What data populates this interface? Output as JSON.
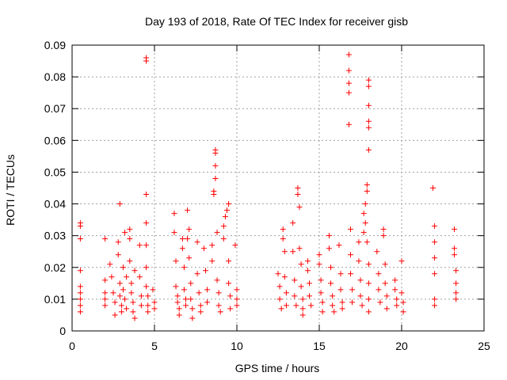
{
  "chart_data": {
    "type": "scatter",
    "title": "Day 193 of 2018, Rate Of TEC Index for receiver gisb",
    "xlabel": "GPS time / hours",
    "ylabel": "ROTI / TECUs",
    "xlim": [
      0,
      25
    ],
    "ylim": [
      0,
      0.09
    ],
    "xticks": [
      "0",
      "5",
      "10",
      "15",
      "20",
      "25"
    ],
    "yticks": [
      "0",
      "0.01",
      "0.02",
      "0.03",
      "0.04",
      "0.05",
      "0.06",
      "0.07",
      "0.08",
      "0.09"
    ],
    "grid": true,
    "marker": "plus",
    "color": "#ff0000",
    "series": [
      {
        "points": [
          [
            0.5,
            0.034
          ],
          [
            0.5,
            0.033
          ],
          [
            0.5,
            0.029
          ],
          [
            0.5,
            0.019
          ],
          [
            0.5,
            0.014
          ],
          [
            0.5,
            0.012
          ],
          [
            0.5,
            0.01
          ],
          [
            0.5,
            0.008
          ],
          [
            0.5,
            0.006
          ],
          [
            2.0,
            0.029
          ],
          [
            2.0,
            0.016
          ],
          [
            2.0,
            0.012
          ],
          [
            2.0,
            0.01
          ],
          [
            2.0,
            0.008
          ],
          [
            2.3,
            0.021
          ],
          [
            2.4,
            0.017
          ],
          [
            2.5,
            0.012
          ],
          [
            2.6,
            0.009
          ],
          [
            2.6,
            0.005
          ],
          [
            2.8,
            0.028
          ],
          [
            2.8,
            0.024
          ],
          [
            2.9,
            0.04
          ],
          [
            2.9,
            0.015
          ],
          [
            2.9,
            0.011
          ],
          [
            3.0,
            0.008
          ],
          [
            3.0,
            0.006
          ],
          [
            3.1,
            0.02
          ],
          [
            3.1,
            0.013
          ],
          [
            3.2,
            0.031
          ],
          [
            3.2,
            0.01
          ],
          [
            3.3,
            0.017
          ],
          [
            3.3,
            0.007
          ],
          [
            3.5,
            0.032
          ],
          [
            3.5,
            0.029
          ],
          [
            3.5,
            0.022
          ],
          [
            3.6,
            0.015
          ],
          [
            3.6,
            0.012
          ],
          [
            3.7,
            0.009
          ],
          [
            3.7,
            0.006
          ],
          [
            3.8,
            0.019
          ],
          [
            3.8,
            0.004
          ],
          [
            4.1,
            0.027
          ],
          [
            4.1,
            0.017
          ],
          [
            4.2,
            0.011
          ],
          [
            4.2,
            0.008
          ],
          [
            4.5,
            0.086
          ],
          [
            4.5,
            0.085
          ],
          [
            4.5,
            0.043
          ],
          [
            4.5,
            0.034
          ],
          [
            4.5,
            0.027
          ],
          [
            4.5,
            0.02
          ],
          [
            4.5,
            0.014
          ],
          [
            4.6,
            0.011
          ],
          [
            4.6,
            0.008
          ],
          [
            4.6,
            0.006
          ],
          [
            4.9,
            0.013
          ],
          [
            5.0,
            0.009
          ],
          [
            5.0,
            0.007
          ],
          [
            6.2,
            0.037
          ],
          [
            6.2,
            0.031
          ],
          [
            6.3,
            0.022
          ],
          [
            6.3,
            0.014
          ],
          [
            6.4,
            0.011
          ],
          [
            6.4,
            0.009
          ],
          [
            6.5,
            0.007
          ],
          [
            6.5,
            0.005
          ],
          [
            6.7,
            0.029
          ],
          [
            6.7,
            0.026
          ],
          [
            6.8,
            0.02
          ],
          [
            6.8,
            0.013
          ],
          [
            6.9,
            0.01
          ],
          [
            6.9,
            0.008
          ],
          [
            7.0,
            0.038
          ],
          [
            7.0,
            0.029
          ],
          [
            7.1,
            0.032
          ],
          [
            7.1,
            0.023
          ],
          [
            7.2,
            0.015
          ],
          [
            7.2,
            0.01
          ],
          [
            7.3,
            0.007
          ],
          [
            7.3,
            0.004
          ],
          [
            7.6,
            0.028
          ],
          [
            7.6,
            0.018
          ],
          [
            7.7,
            0.012
          ],
          [
            7.8,
            0.008
          ],
          [
            7.8,
            0.006
          ],
          [
            8.0,
            0.026
          ],
          [
            8.1,
            0.019
          ],
          [
            8.2,
            0.013
          ],
          [
            8.2,
            0.009
          ],
          [
            8.5,
            0.027
          ],
          [
            8.5,
            0.022
          ],
          [
            8.6,
            0.044
          ],
          [
            8.6,
            0.043
          ],
          [
            8.7,
            0.057
          ],
          [
            8.7,
            0.056
          ],
          [
            8.7,
            0.052
          ],
          [
            8.7,
            0.048
          ],
          [
            8.8,
            0.031
          ],
          [
            8.8,
            0.016
          ],
          [
            8.9,
            0.012
          ],
          [
            8.9,
            0.008
          ],
          [
            9.0,
            0.006
          ],
          [
            9.2,
            0.033
          ],
          [
            9.2,
            0.029
          ],
          [
            9.3,
            0.036
          ],
          [
            9.4,
            0.038
          ],
          [
            9.5,
            0.04
          ],
          [
            9.5,
            0.022
          ],
          [
            9.5,
            0.015
          ],
          [
            9.6,
            0.011
          ],
          [
            9.6,
            0.007
          ],
          [
            9.9,
            0.027
          ],
          [
            10.0,
            0.013
          ],
          [
            10.0,
            0.01
          ],
          [
            10.0,
            0.008
          ],
          [
            12.5,
            0.018
          ],
          [
            12.6,
            0.014
          ],
          [
            12.6,
            0.01
          ],
          [
            12.7,
            0.007
          ],
          [
            12.8,
            0.032
          ],
          [
            12.8,
            0.029
          ],
          [
            12.9,
            0.025
          ],
          [
            12.9,
            0.017
          ],
          [
            13.0,
            0.012
          ],
          [
            13.0,
            0.008
          ],
          [
            13.4,
            0.034
          ],
          [
            13.4,
            0.025
          ],
          [
            13.5,
            0.016
          ],
          [
            13.5,
            0.011
          ],
          [
            13.6,
            0.008
          ],
          [
            13.7,
            0.045
          ],
          [
            13.7,
            0.043
          ],
          [
            13.8,
            0.039
          ],
          [
            13.8,
            0.026
          ],
          [
            13.9,
            0.021
          ],
          [
            13.9,
            0.014
          ],
          [
            14.0,
            0.01
          ],
          [
            14.0,
            0.007
          ],
          [
            14.0,
            0.005
          ],
          [
            14.3,
            0.022
          ],
          [
            14.3,
            0.019
          ],
          [
            14.4,
            0.015
          ],
          [
            14.4,
            0.011
          ],
          [
            14.5,
            0.008
          ],
          [
            15.0,
            0.024
          ],
          [
            15.0,
            0.021
          ],
          [
            15.1,
            0.016
          ],
          [
            15.1,
            0.012
          ],
          [
            15.2,
            0.009
          ],
          [
            15.2,
            0.006
          ],
          [
            15.6,
            0.03
          ],
          [
            15.6,
            0.026
          ],
          [
            15.7,
            0.02
          ],
          [
            15.7,
            0.015
          ],
          [
            15.8,
            0.011
          ],
          [
            15.8,
            0.008
          ],
          [
            15.9,
            0.006
          ],
          [
            16.2,
            0.027
          ],
          [
            16.3,
            0.018
          ],
          [
            16.3,
            0.013
          ],
          [
            16.4,
            0.009
          ],
          [
            16.4,
            0.007
          ],
          [
            16.8,
            0.087
          ],
          [
            16.8,
            0.082
          ],
          [
            16.8,
            0.078
          ],
          [
            16.8,
            0.075
          ],
          [
            16.8,
            0.065
          ],
          [
            16.9,
            0.032
          ],
          [
            16.9,
            0.024
          ],
          [
            16.9,
            0.018
          ],
          [
            17.0,
            0.013
          ],
          [
            17.0,
            0.009
          ],
          [
            17.4,
            0.028
          ],
          [
            17.4,
            0.022
          ],
          [
            17.5,
            0.016
          ],
          [
            17.5,
            0.011
          ],
          [
            17.6,
            0.008
          ],
          [
            17.7,
            0.037
          ],
          [
            17.7,
            0.031
          ],
          [
            17.8,
            0.04
          ],
          [
            17.8,
            0.034
          ],
          [
            17.9,
            0.044
          ],
          [
            17.9,
            0.046
          ],
          [
            17.9,
            0.028
          ],
          [
            18.0,
            0.021
          ],
          [
            18.0,
            0.015
          ],
          [
            18.0,
            0.01
          ],
          [
            18.0,
            0.006
          ],
          [
            18.0,
            0.079
          ],
          [
            18.0,
            0.077
          ],
          [
            18.0,
            0.071
          ],
          [
            18.0,
            0.066
          ],
          [
            18.0,
            0.064
          ],
          [
            18.0,
            0.057
          ],
          [
            18.5,
            0.025
          ],
          [
            18.6,
            0.018
          ],
          [
            18.6,
            0.013
          ],
          [
            18.7,
            0.009
          ],
          [
            18.9,
            0.032
          ],
          [
            18.9,
            0.03
          ],
          [
            19.0,
            0.021
          ],
          [
            19.0,
            0.015
          ],
          [
            19.1,
            0.011
          ],
          [
            19.1,
            0.007
          ],
          [
            19.6,
            0.016
          ],
          [
            19.6,
            0.013
          ],
          [
            19.7,
            0.01
          ],
          [
            19.7,
            0.008
          ],
          [
            20.0,
            0.022
          ],
          [
            20.0,
            0.012
          ],
          [
            20.1,
            0.009
          ],
          [
            20.1,
            0.006
          ],
          [
            21.9,
            0.045
          ],
          [
            22.0,
            0.033
          ],
          [
            22.0,
            0.028
          ],
          [
            22.0,
            0.023
          ],
          [
            22.0,
            0.018
          ],
          [
            22.0,
            0.01
          ],
          [
            22.0,
            0.008
          ],
          [
            23.2,
            0.032
          ],
          [
            23.2,
            0.026
          ],
          [
            23.2,
            0.024
          ],
          [
            23.3,
            0.019
          ],
          [
            23.3,
            0.015
          ],
          [
            23.3,
            0.012
          ],
          [
            23.3,
            0.01
          ]
        ]
      }
    ]
  }
}
